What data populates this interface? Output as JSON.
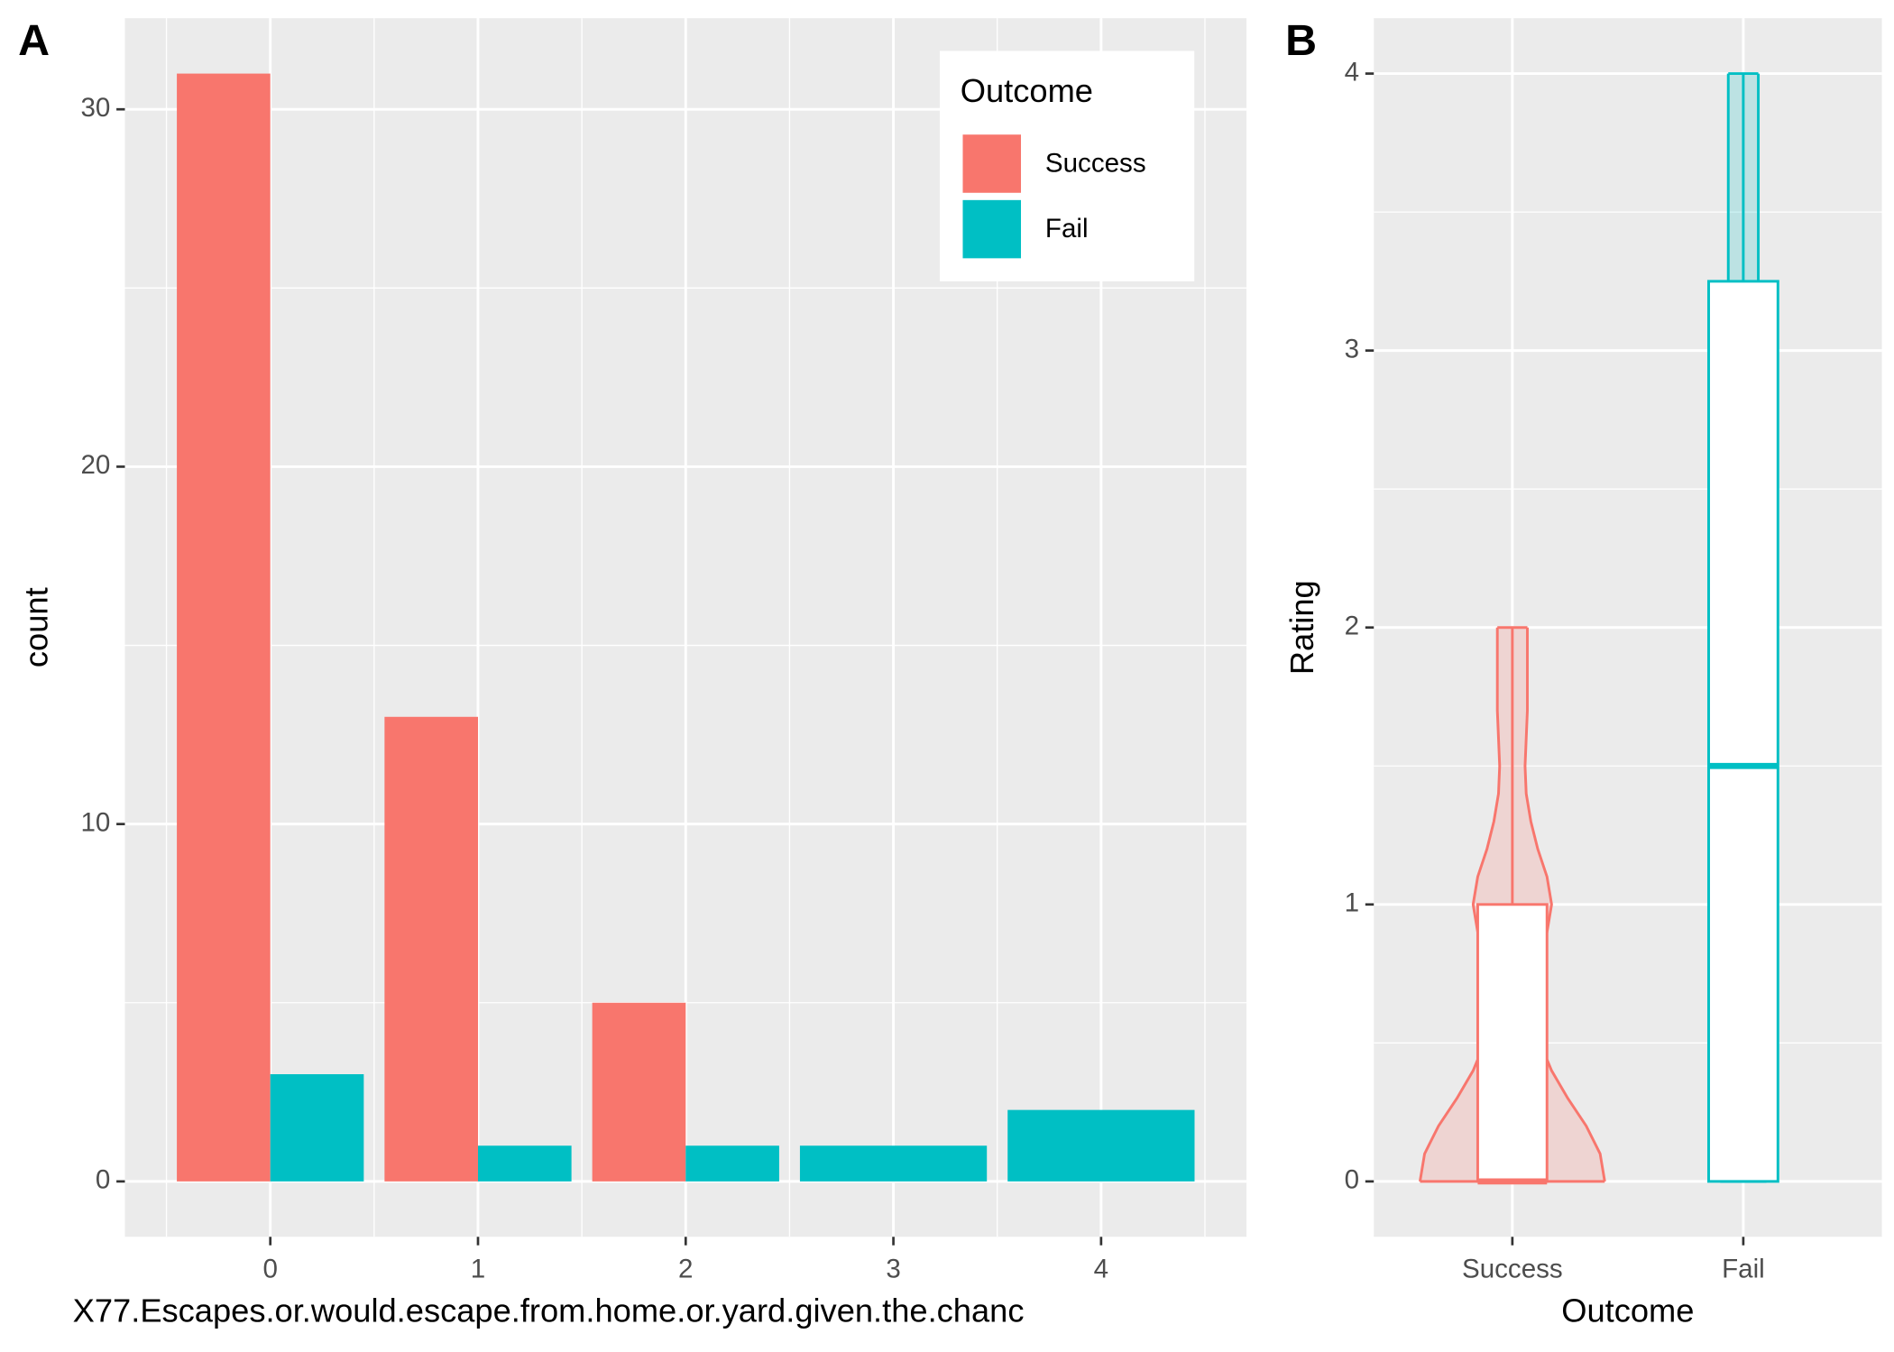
{
  "chart_data": [
    {
      "type": "bar",
      "tag": "A",
      "xlabel": "X77.Escapes.or.would.escape.from.home.or.yard.given.the.chanc",
      "ylabel": "count",
      "x": [
        0,
        1,
        2,
        3,
        4
      ],
      "series": [
        {
          "name": "Success",
          "color": "#F8766D",
          "values": [
            31,
            13,
            5,
            null,
            null
          ]
        },
        {
          "name": "Fail",
          "color": "#00BFC4",
          "values": [
            3,
            1,
            1,
            1,
            2
          ]
        }
      ],
      "xlim": [
        -0.7,
        4.7
      ],
      "xticks": [
        0,
        1,
        2,
        3,
        4
      ],
      "ylim": [
        -1.55,
        32.55
      ],
      "yticks": [
        0,
        10,
        20,
        30
      ],
      "grid": true,
      "legend": {
        "title": "Outcome",
        "position": "top-right"
      }
    },
    {
      "type": "boxviolin",
      "tag": "B",
      "xlabel": "Outcome",
      "ylabel": "Rating",
      "categories": [
        "Success",
        "Fail"
      ],
      "boxes": [
        {
          "color": "#F8766D",
          "min": 0,
          "q1": 0,
          "median": 0,
          "q3": 1,
          "max": 2,
          "violin": {
            "y": [
              0,
              0.1,
              0.2,
              0.3,
              0.4,
              0.5,
              0.6,
              0.7,
              0.8,
              0.9,
              1.0,
              1.1,
              1.2,
              1.3,
              1.4,
              1.5,
              1.6,
              1.7,
              1.8,
              1.9,
              2.0
            ],
            "width": [
              0.4,
              0.38,
              0.32,
              0.24,
              0.17,
              0.12,
              0.09,
              0.09,
              0.11,
              0.15,
              0.17,
              0.15,
              0.11,
              0.08,
              0.06,
              0.055,
              0.06,
              0.065,
              0.065,
              0.065,
              0.065
            ]
          }
        },
        {
          "color": "#00BFC4",
          "min": 0,
          "q1": 0,
          "median": 1.5,
          "q3": 3.25,
          "max": 4,
          "violin": {
            "y": [
              0,
              0.5,
              1,
              1.5,
              2,
              2.5,
              3,
              3.25,
              3.5,
              4
            ],
            "width": [
              0.1,
              0.1,
              0.1,
              0.1,
              0.1,
              0.1,
              0.08,
              0.065,
              0.065,
              0.065
            ]
          }
        }
      ],
      "xlim": [
        0.4,
        2.6
      ],
      "ylim": [
        -0.2,
        4.2
      ],
      "yticks": [
        0,
        1,
        2,
        3,
        4
      ],
      "grid": true
    }
  ]
}
